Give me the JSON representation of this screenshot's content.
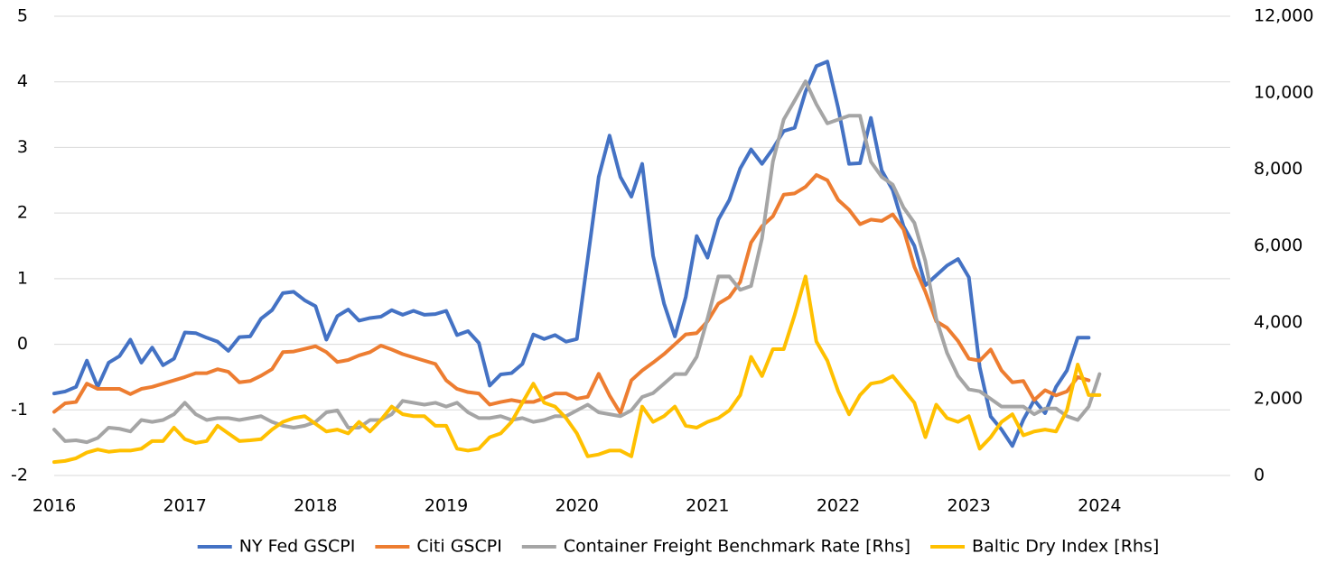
{
  "chart_data": {
    "type": "line",
    "x": [
      2016,
      2016.083,
      2016.167,
      2016.25,
      2016.333,
      2016.417,
      2016.5,
      2016.583,
      2016.667,
      2016.75,
      2016.833,
      2016.917,
      2017,
      2017.083,
      2017.167,
      2017.25,
      2017.333,
      2017.417,
      2017.5,
      2017.583,
      2017.667,
      2017.75,
      2017.833,
      2017.917,
      2018,
      2018.083,
      2018.167,
      2018.25,
      2018.333,
      2018.417,
      2018.5,
      2018.583,
      2018.667,
      2018.75,
      2018.833,
      2018.917,
      2019,
      2019.083,
      2019.167,
      2019.25,
      2019.333,
      2019.417,
      2019.5,
      2019.583,
      2019.667,
      2019.75,
      2019.833,
      2019.917,
      2020,
      2020.083,
      2020.167,
      2020.25,
      2020.333,
      2020.417,
      2020.5,
      2020.583,
      2020.667,
      2020.75,
      2020.833,
      2020.917,
      2021,
      2021.083,
      2021.167,
      2021.25,
      2021.333,
      2021.417,
      2021.5,
      2021.583,
      2021.667,
      2021.75,
      2021.833,
      2021.917,
      2022,
      2022.083,
      2022.167,
      2022.25,
      2022.333,
      2022.417,
      2022.5,
      2022.583,
      2022.667,
      2022.75,
      2022.833,
      2022.917,
      2023,
      2023.083,
      2023.167,
      2023.25,
      2023.333,
      2023.417,
      2023.5,
      2023.583,
      2023.667,
      2023.75,
      2023.833,
      2023.917,
      2024
    ],
    "series": [
      {
        "name": "NY Fed GSCPI",
        "color": "#4472c4",
        "values": [
          -0.75,
          -0.72,
          -0.65,
          -0.25,
          -0.65,
          -0.28,
          -0.18,
          0.07,
          -0.28,
          -0.05,
          -0.32,
          -0.22,
          0.18,
          0.17,
          0.1,
          0.04,
          -0.1,
          0.11,
          0.12,
          0.39,
          0.52,
          0.78,
          0.8,
          0.67,
          0.58,
          0.07,
          0.43,
          0.53,
          0.36,
          0.4,
          0.42,
          0.52,
          0.45,
          0.51,
          0.45,
          0.46,
          0.51,
          0.14,
          0.2,
          0.02,
          -0.63,
          -0.46,
          -0.44,
          -0.3,
          0.15,
          0.08,
          0.14,
          0.04,
          0.08,
          1.3,
          2.55,
          3.18,
          2.55,
          2.25,
          2.75,
          1.35,
          0.62,
          0.12,
          0.72,
          1.65,
          1.32,
          1.9,
          2.2,
          2.68,
          2.97,
          2.75,
          2.98,
          3.25,
          3.3,
          3.85,
          4.24,
          4.31,
          3.6,
          2.75,
          2.76,
          3.45,
          2.65,
          2.35,
          1.8,
          1.5,
          0.9,
          1.05,
          1.2,
          1.3,
          1.02,
          -0.35,
          -1.1,
          -1.3,
          -1.55,
          -1.15,
          -0.85,
          -1.05,
          -0.65,
          -0.4,
          0.1,
          0.1,
          null
        ]
      },
      {
        "name": "Citi GSCPI",
        "color": "#ed7d31",
        "values": [
          -1.03,
          -0.9,
          -0.88,
          -0.6,
          -0.68,
          -0.68,
          -0.68,
          -0.76,
          -0.68,
          -0.65,
          -0.6,
          -0.55,
          -0.5,
          -0.44,
          -0.44,
          -0.38,
          -0.42,
          -0.58,
          -0.56,
          -0.48,
          -0.38,
          -0.12,
          -0.11,
          -0.07,
          -0.03,
          -0.12,
          -0.27,
          -0.24,
          -0.17,
          -0.12,
          -0.02,
          -0.08,
          -0.15,
          -0.2,
          -0.25,
          -0.3,
          -0.55,
          -0.68,
          -0.73,
          -0.75,
          -0.92,
          -0.88,
          -0.85,
          -0.88,
          -0.88,
          -0.82,
          -0.75,
          -0.75,
          -0.83,
          -0.8,
          -0.45,
          -0.78,
          -1.05,
          -0.55,
          -0.4,
          -0.28,
          -0.15,
          0.0,
          0.15,
          0.17,
          0.35,
          0.62,
          0.72,
          0.95,
          1.55,
          1.8,
          1.95,
          2.28,
          2.3,
          2.4,
          2.58,
          2.5,
          2.2,
          2.05,
          1.83,
          1.9,
          1.88,
          1.98,
          1.75,
          1.18,
          0.8,
          0.35,
          0.25,
          0.05,
          -0.22,
          -0.25,
          -0.08,
          -0.4,
          -0.58,
          -0.56,
          -0.85,
          -0.7,
          -0.78,
          -0.72,
          -0.5,
          -0.55,
          null
        ]
      },
      {
        "name": "Container Freight Benchmark Rate [Rhs]",
        "color": "#a5a5a5",
        "axis": "y2",
        "values": [
          1200,
          900,
          920,
          870,
          980,
          1250,
          1220,
          1150,
          1450,
          1400,
          1450,
          1600,
          1900,
          1600,
          1450,
          1500,
          1500,
          1450,
          1500,
          1550,
          1400,
          1300,
          1250,
          1300,
          1400,
          1650,
          1700,
          1250,
          1250,
          1450,
          1450,
          1600,
          1950,
          1900,
          1850,
          1900,
          1800,
          1900,
          1650,
          1500,
          1500,
          1550,
          1450,
          1500,
          1400,
          1450,
          1550,
          1550,
          1700,
          1850,
          1650,
          1600,
          1550,
          1700,
          2050,
          2150,
          2400,
          2650,
          2650,
          3100,
          4100,
          5200,
          5200,
          4850,
          4950,
          6200,
          8200,
          9300,
          9800,
          10300,
          9700,
          9200,
          9300,
          9400,
          9400,
          8200,
          7800,
          7600,
          7000,
          6600,
          5600,
          4100,
          3200,
          2600,
          2250,
          2200,
          2000,
          1800,
          1800,
          1800,
          1600,
          1750,
          1750,
          1550,
          1450,
          1800,
          2650
        ]
      },
      {
        "name": "Baltic Dry Index [Rhs]",
        "color": "#ffc000",
        "axis": "y2",
        "values": [
          350,
          380,
          450,
          600,
          680,
          620,
          650,
          650,
          700,
          900,
          900,
          1250,
          950,
          850,
          900,
          1300,
          1100,
          900,
          920,
          950,
          1200,
          1400,
          1500,
          1550,
          1350,
          1150,
          1200,
          1100,
          1400,
          1150,
          1450,
          1800,
          1600,
          1550,
          1550,
          1300,
          1300,
          700,
          650,
          700,
          1000,
          1100,
          1400,
          1900,
          2400,
          1900,
          1800,
          1500,
          1100,
          500,
          550,
          650,
          650,
          500,
          1800,
          1400,
          1550,
          1800,
          1300,
          1250,
          1400,
          1500,
          1700,
          2100,
          3100,
          2600,
          3300,
          3300,
          4200,
          5200,
          3500,
          3000,
          2200,
          1600,
          2100,
          2400,
          2450,
          2600,
          2250,
          1900,
          1000,
          1850,
          1500,
          1400,
          1550,
          700,
          1000,
          1400,
          1600,
          1050,
          1150,
          1200,
          1150,
          1700,
          2900,
          2100,
          2100
        ]
      }
    ],
    "xlim": [
      2016,
      2025
    ],
    "xticks": [
      2016,
      2017,
      2018,
      2019,
      2020,
      2021,
      2022,
      2023,
      2024
    ],
    "ylim": [
      -2,
      5
    ],
    "yticks": [
      -2,
      -1,
      0,
      1,
      2,
      3,
      4,
      5
    ],
    "y2lim": [
      0,
      12000
    ],
    "y2ticks": [
      0,
      {
        "value": 2000,
        "label": "2,000"
      },
      {
        "value": 4000,
        "label": "4,000"
      },
      {
        "value": 6000,
        "label": "6,000"
      },
      {
        "value": 8000,
        "label": "8,000"
      },
      {
        "value": 10000,
        "label": "10,000"
      },
      {
        "value": 12000,
        "label": "12,000"
      }
    ],
    "grid": true,
    "legend": "bottom"
  }
}
